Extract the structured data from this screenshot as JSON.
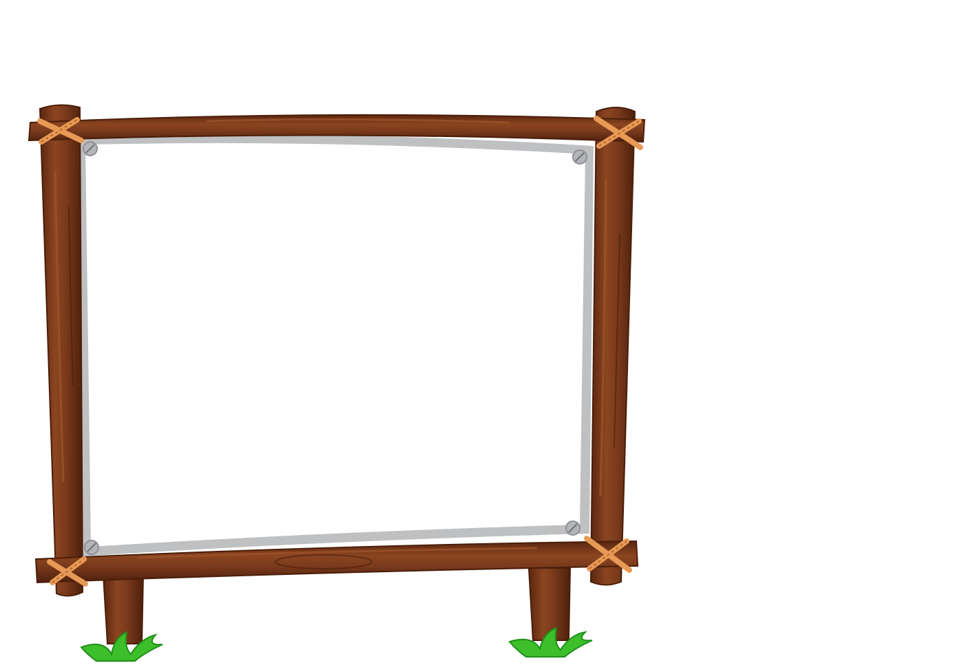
{
  "scene": {
    "background_color": "#ffffff",
    "signboard": {
      "panel_color": "#ffffff",
      "panel_border_color": "#bfc0c2",
      "wood_color": "#7a3a1c",
      "wood_dark_color": "#5a2610",
      "wood_highlight_color": "#a0552c",
      "rope_color": "#e79a55",
      "rope_dark_color": "#b8652a",
      "screw_color": "#b3b5b8",
      "grass_color": "#3cbf2a",
      "grass_dark_color": "#1f8f1a",
      "screw_count": 4,
      "rope_lashing_count": 4,
      "leg_count": 2,
      "grass_tuft_count": 2
    }
  }
}
